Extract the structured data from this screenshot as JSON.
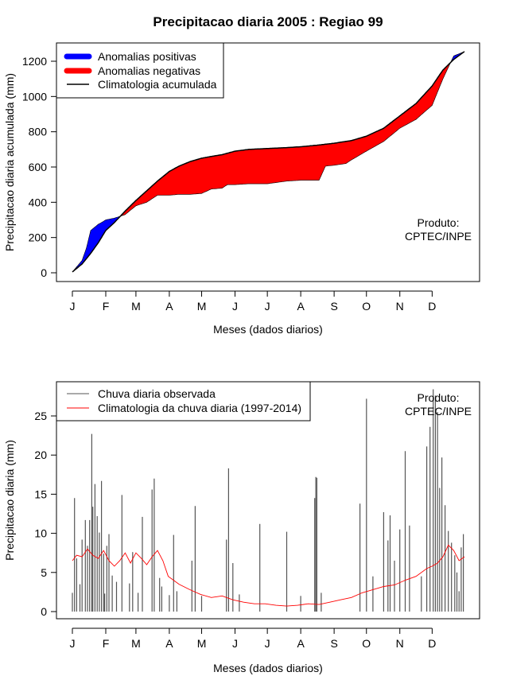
{
  "figure_title": "Precipitacao diaria 2005 : Regiao 99",
  "colors": {
    "positive": "#0000ff",
    "negative": "#ff0000",
    "climatology": "#000000",
    "observed": "#555555",
    "climatology_daily": "#ff0000"
  },
  "chart_data": [
    {
      "type": "area",
      "title": "Precipitacao diaria 2005 : Regiao 99",
      "xlabel": "Meses (dados diarios)",
      "ylabel": "Precipitacao diaria acumulada (mm)",
      "xlim": [
        1,
        365
      ],
      "ylim": [
        0,
        1250
      ],
      "x_ticks": [
        1,
        32,
        60,
        91,
        121,
        152,
        182,
        213,
        244,
        274,
        305,
        335
      ],
      "x_tick_labels": [
        "J",
        "F",
        "M",
        "A",
        "M",
        "J",
        "J",
        "A",
        "S",
        "O",
        "N",
        "D"
      ],
      "y_ticks": [
        0,
        200,
        400,
        600,
        800,
        1000,
        1200
      ],
      "y_tick_labels": [
        "0",
        "200",
        "400",
        "600",
        "800",
        "1000",
        "1200"
      ],
      "legend": [
        "Anomalias positivas",
        "Anomalias negativas",
        "Climatologia acumulada"
      ],
      "annotation": [
        "Produto:",
        "CPTEC/INPE"
      ],
      "climatology_cumulative": {
        "days": [
          1,
          10,
          18,
          25,
          32,
          40,
          50,
          60,
          70,
          80,
          91,
          100,
          110,
          121,
          130,
          140,
          152,
          165,
          182,
          200,
          213,
          230,
          244,
          260,
          274,
          290,
          305,
          320,
          335,
          345,
          355,
          365
        ],
        "values": [
          5,
          50,
          110,
          170,
          240,
          285,
          350,
          410,
          465,
          520,
          575,
          605,
          630,
          650,
          660,
          670,
          690,
          700,
          705,
          710,
          715,
          725,
          735,
          750,
          775,
          820,
          890,
          960,
          1060,
          1150,
          1210,
          1255
        ]
      },
      "observed_cumulative": {
        "days": [
          1,
          10,
          14,
          18,
          25,
          28,
          32,
          40,
          50,
          60,
          70,
          80,
          91,
          100,
          110,
          121,
          130,
          140,
          145,
          152,
          165,
          182,
          200,
          213,
          230,
          236,
          244,
          255,
          260,
          274,
          290,
          305,
          320,
          335,
          345,
          355,
          365
        ],
        "values": [
          5,
          70,
          140,
          240,
          275,
          285,
          300,
          310,
          330,
          380,
          400,
          440,
          440,
          445,
          445,
          450,
          475,
          480,
          500,
          500,
          505,
          505,
          520,
          525,
          525,
          605,
          610,
          620,
          640,
          690,
          745,
          820,
          870,
          950,
          1100,
          1230,
          1255
        ]
      }
    },
    {
      "type": "bar",
      "title": "",
      "xlabel": "Meses (dados diarios)",
      "ylabel": "Precipitacao diaria (mm)",
      "xlim": [
        1,
        365
      ],
      "ylim": [
        0,
        28
      ],
      "x_ticks": [
        1,
        32,
        60,
        91,
        121,
        152,
        182,
        213,
        244,
        274,
        305,
        335
      ],
      "x_tick_labels": [
        "J",
        "F",
        "M",
        "A",
        "M",
        "J",
        "J",
        "A",
        "S",
        "O",
        "N",
        "D"
      ],
      "y_ticks": [
        0,
        5,
        10,
        15,
        20,
        25
      ],
      "y_tick_labels": [
        "0",
        "5",
        "10",
        "15",
        "20",
        "25"
      ],
      "legend": [
        "Chuva diaria observada",
        "Climatologia da chuva diaria (1997-2014)"
      ],
      "annotation": [
        "Produto:",
        "CPTEC/INPE"
      ],
      "observed_daily_peaks": {
        "days": [
          1,
          3,
          5,
          8,
          10,
          13,
          15,
          17,
          19,
          20,
          22,
          24,
          26,
          28,
          30,
          31,
          33,
          35,
          38,
          42,
          47,
          54,
          57,
          62,
          66,
          75,
          77,
          82,
          84,
          91,
          95,
          98,
          112,
          115,
          121,
          144,
          146,
          150,
          156,
          175,
          200,
          213,
          226,
          227,
          228,
          232,
          268,
          274,
          280,
          290,
          294,
          296,
          300,
          305,
          310,
          314,
          325,
          330,
          333,
          336,
          338,
          340,
          342,
          344,
          347,
          350,
          353,
          356,
          358,
          360,
          362,
          364
        ],
        "values": [
          2.4,
          14.5,
          6.8,
          3.5,
          9.2,
          11.7,
          8.4,
          11.7,
          22.7,
          13.4,
          16.3,
          12.2,
          10.1,
          16.7,
          7.4,
          2.3,
          8.4,
          9.9,
          4.6,
          3.8,
          14.9,
          3.6,
          7.6,
          2.4,
          12.1,
          15.6,
          17.0,
          4.3,
          3.2,
          2.1,
          9.8,
          2.6,
          6.5,
          13.5,
          2.0,
          9.2,
          18.3,
          6.2,
          2.2,
          11.2,
          10.2,
          2.0,
          14.5,
          17.2,
          17.1,
          2.4,
          13.8,
          27.2,
          4.5,
          12.7,
          9.1,
          12.3,
          6.5,
          10.5,
          20.5,
          11.0,
          4.5,
          21.1,
          23.6,
          28.4,
          27.6,
          25.5,
          15.8,
          19.7,
          13.6,
          10.3,
          8.8,
          7.2,
          5.0,
          2.6,
          8.2,
          9.9
        ]
      },
      "climatology_daily": {
        "days": [
          1,
          5,
          10,
          15,
          20,
          25,
          30,
          35,
          40,
          45,
          50,
          55,
          60,
          65,
          70,
          75,
          80,
          85,
          90,
          95,
          100,
          110,
          120,
          130,
          140,
          150,
          160,
          170,
          180,
          190,
          200,
          210,
          220,
          230,
          240,
          250,
          260,
          270,
          280,
          290,
          300,
          310,
          320,
          330,
          335,
          340,
          345,
          350,
          355,
          360,
          365
        ],
        "values": [
          6.5,
          7.2,
          7.0,
          8.0,
          7.2,
          6.8,
          7.8,
          6.5,
          5.8,
          6.5,
          7.5,
          6.2,
          7.5,
          6.8,
          6.0,
          7.0,
          7.8,
          6.5,
          4.5,
          4.0,
          3.5,
          2.8,
          2.2,
          1.8,
          2.0,
          1.5,
          1.2,
          1.0,
          1.0,
          0.8,
          0.7,
          0.8,
          1.0,
          0.9,
          1.2,
          1.5,
          1.8,
          2.4,
          2.8,
          3.2,
          3.4,
          4.0,
          4.5,
          5.5,
          5.8,
          6.2,
          7.0,
          8.5,
          7.8,
          6.5,
          7.0
        ]
      }
    }
  ]
}
